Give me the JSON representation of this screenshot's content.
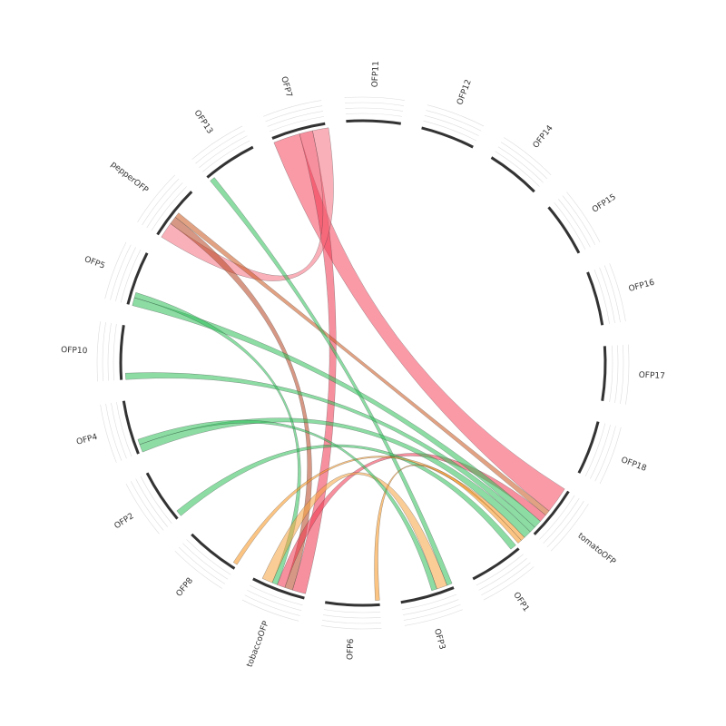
{
  "chart_data": {
    "type": "chord",
    "segments": [
      {
        "name": "OFP11",
        "size": 10
      },
      {
        "name": "OFP12",
        "size": 10
      },
      {
        "name": "OFP14",
        "size": 10
      },
      {
        "name": "OFP15",
        "size": 10
      },
      {
        "name": "OFP16",
        "size": 10
      },
      {
        "name": "OFP17",
        "size": 10
      },
      {
        "name": "OFP18",
        "size": 10
      },
      {
        "name": "tomatoOFP",
        "size": 10
      },
      {
        "name": "OFP1",
        "size": 10
      },
      {
        "name": "OFP3",
        "size": 10
      },
      {
        "name": "OFP6",
        "size": 10
      },
      {
        "name": "tobaccoOFP",
        "size": 10
      },
      {
        "name": "OFP8",
        "size": 10
      },
      {
        "name": "OFP2",
        "size": 10
      },
      {
        "name": "OFP4",
        "size": 10
      },
      {
        "name": "OFP10",
        "size": 10
      },
      {
        "name": "OFP5",
        "size": 10
      },
      {
        "name": "pepperOFP",
        "size": 10
      },
      {
        "name": "OFP13",
        "size": 10
      },
      {
        "name": "OFP7",
        "size": 10
      }
    ],
    "links": [
      {
        "source": "OFP7",
        "target": "tomatoOFP",
        "value": 5,
        "color": "#f5475e"
      },
      {
        "source": "OFP7",
        "target": "tobaccoOFP",
        "value": 2.5,
        "color": "#f0354f"
      },
      {
        "source": "pepperOFP",
        "target": "OFP7",
        "value": 3,
        "color": "#f5707f"
      },
      {
        "source": "pepperOFP",
        "target": "tobaccoOFP",
        "value": 1.5,
        "color": "#b5431f"
      },
      {
        "source": "pepperOFP",
        "target": "tomatoOFP",
        "value": 1,
        "color": "#c8551d"
      },
      {
        "source": "tobaccoOFP",
        "target": "tomatoOFP",
        "value": 1.5,
        "color": "#f0354f"
      },
      {
        "source": "OFP13",
        "target": "OFP3",
        "value": 1,
        "color": "#2ec05a"
      },
      {
        "source": "OFP5",
        "target": "tomatoOFP",
        "value": 1.5,
        "color": "#2ec05a"
      },
      {
        "source": "OFP10",
        "target": "tomatoOFP",
        "value": 1.2,
        "color": "#2ec05a"
      },
      {
        "source": "OFP4",
        "target": "tomatoOFP",
        "value": 1.5,
        "color": "#2ec05a"
      },
      {
        "source": "OFP2",
        "target": "OFP1",
        "value": 1.2,
        "color": "#2ec05a"
      },
      {
        "source": "OFP5",
        "target": "tobaccoOFP",
        "value": 1,
        "color": "#2ec05a"
      },
      {
        "source": "OFP8",
        "target": "tomatoOFP",
        "value": 0.8,
        "color": "#f7941d"
      },
      {
        "source": "OFP6",
        "target": "tomatoOFP",
        "value": 0.8,
        "color": "#f7941d"
      },
      {
        "source": "OFP3",
        "target": "tobaccoOFP",
        "value": 2,
        "color": "#f7a440"
      },
      {
        "source": "OFP4",
        "target": "OFP3",
        "value": 1,
        "color": "#2ec05a"
      }
    ]
  }
}
